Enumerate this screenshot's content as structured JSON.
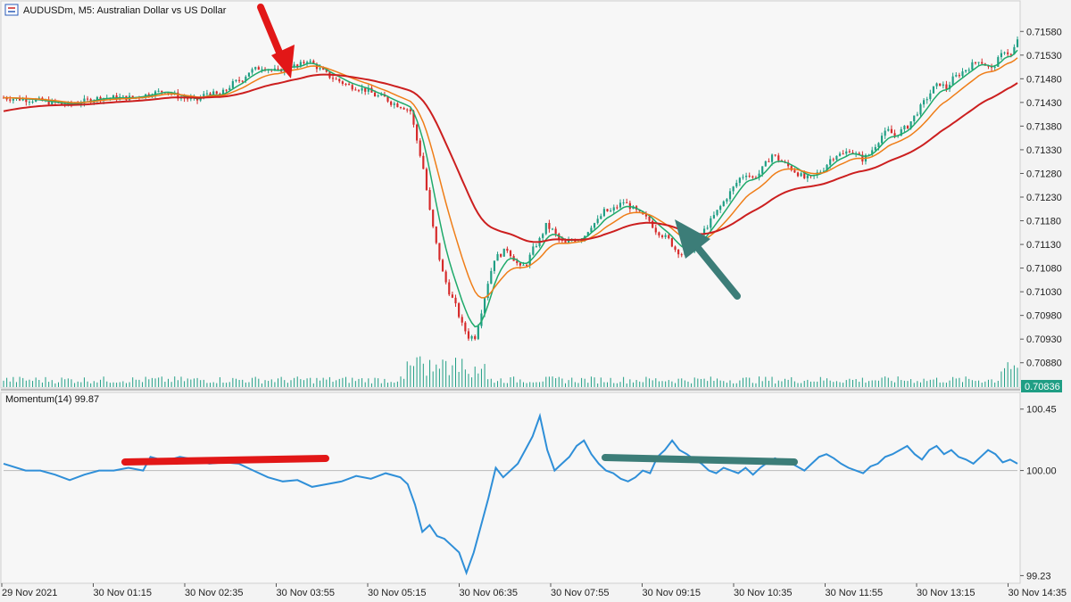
{
  "window_title": "AUDUSDm, M5:  Australian Dollar vs US Dollar",
  "chart_data": [
    {
      "type": "candlestick",
      "symbol": "AUDUSDm",
      "timeframe": "M5",
      "description": "Australian Dollar vs US Dollar",
      "price_axis_labels": [
        "0.71580",
        "0.71530",
        "0.71480",
        "0.71430",
        "0.71380",
        "0.71330",
        "0.71280",
        "0.71230",
        "0.71180",
        "0.71130",
        "0.71080",
        "0.71030",
        "0.70980",
        "0.70930",
        "0.70880"
      ],
      "ylim": [
        0.70855,
        0.71605
      ],
      "current_price": "0.70836",
      "x_axis_labels": [
        "29 Nov 2021",
        "30 Nov 01:15",
        "30 Nov 02:35",
        "30 Nov 03:55",
        "30 Nov 05:15",
        "30 Nov 06:35",
        "30 Nov 07:55",
        "30 Nov 09:15",
        "30 Nov 10:35",
        "30 Nov 11:55",
        "30 Nov 13:15",
        "30 Nov 14:35"
      ],
      "close_path": [
        [
          0,
          0.7144
        ],
        [
          10,
          0.71435
        ],
        [
          20,
          0.71425
        ],
        [
          30,
          0.7144
        ],
        [
          40,
          0.7144
        ],
        [
          50,
          0.71455
        ],
        [
          55,
          0.7144
        ],
        [
          60,
          0.71435
        ],
        [
          63,
          0.7145
        ],
        [
          67,
          0.71445
        ],
        [
          71,
          0.7147
        ],
        [
          74,
          0.7148
        ],
        [
          76,
          0.71495
        ],
        [
          80,
          0.71505
        ],
        [
          85,
          0.71495
        ],
        [
          88,
          0.7151
        ],
        [
          91,
          0.71505
        ],
        [
          94,
          0.7152
        ],
        [
          98,
          0.715
        ],
        [
          101,
          0.71485
        ],
        [
          104,
          0.71475
        ],
        [
          107,
          0.71465
        ],
        [
          110,
          0.7146
        ],
        [
          113,
          0.71455
        ],
        [
          115,
          0.71445
        ],
        [
          118,
          0.7144
        ],
        [
          120,
          0.7143
        ],
        [
          122,
          0.71425
        ],
        [
          124,
          0.7142
        ],
        [
          126,
          0.71412
        ],
        [
          128,
          0.7135
        ],
        [
          130,
          0.7129
        ],
        [
          132,
          0.712
        ],
        [
          134,
          0.7113
        ],
        [
          136,
          0.7107
        ],
        [
          138,
          0.7103
        ],
        [
          140,
          0.71
        ],
        [
          142,
          0.7096
        ],
        [
          144,
          0.70935
        ],
        [
          146,
          0.70935
        ],
        [
          148,
          0.7099
        ],
        [
          150,
          0.7105
        ],
        [
          152,
          0.711
        ],
        [
          154,
          0.7111
        ],
        [
          156,
          0.7112
        ],
        [
          158,
          0.711
        ],
        [
          160,
          0.7108
        ],
        [
          162,
          0.7109
        ],
        [
          164,
          0.7112
        ],
        [
          166,
          0.7114
        ],
        [
          168,
          0.7117
        ],
        [
          170,
          0.7116
        ],
        [
          172,
          0.7114
        ],
        [
          174,
          0.7113
        ],
        [
          176,
          0.7114
        ],
        [
          178,
          0.7114
        ],
        [
          180,
          0.7115
        ],
        [
          182,
          0.7117
        ],
        [
          184,
          0.7118
        ],
        [
          186,
          0.712
        ],
        [
          188,
          0.712
        ],
        [
          190,
          0.7121
        ],
        [
          192,
          0.7122
        ],
        [
          194,
          0.7121
        ],
        [
          196,
          0.712
        ],
        [
          198,
          0.7119
        ],
        [
          200,
          0.7118
        ],
        [
          202,
          0.7116
        ],
        [
          204,
          0.7115
        ],
        [
          206,
          0.7114
        ],
        [
          208,
          0.7112
        ],
        [
          210,
          0.7111
        ],
        [
          212,
          0.7111
        ],
        [
          214,
          0.7113
        ],
        [
          216,
          0.7115
        ],
        [
          218,
          0.7117
        ],
        [
          220,
          0.7119
        ],
        [
          222,
          0.7121
        ],
        [
          224,
          0.7123
        ],
        [
          226,
          0.7125
        ],
        [
          228,
          0.7127
        ],
        [
          230,
          0.7128
        ],
        [
          232,
          0.7127
        ],
        [
          234,
          0.7128
        ],
        [
          236,
          0.713
        ],
        [
          238,
          0.7132
        ],
        [
          240,
          0.7131
        ],
        [
          242,
          0.713
        ],
        [
          244,
          0.7129
        ],
        [
          246,
          0.7128
        ],
        [
          248,
          0.7127
        ],
        [
          250,
          0.7127
        ],
        [
          252,
          0.7128
        ],
        [
          254,
          0.7129
        ],
        [
          256,
          0.7131
        ],
        [
          258,
          0.7132
        ],
        [
          260,
          0.7132
        ],
        [
          262,
          0.7133
        ],
        [
          264,
          0.7132
        ],
        [
          266,
          0.7131
        ],
        [
          268,
          0.7132
        ],
        [
          270,
          0.7134
        ],
        [
          272,
          0.7136
        ],
        [
          274,
          0.7137
        ],
        [
          276,
          0.7136
        ],
        [
          278,
          0.7137
        ],
        [
          280,
          0.7138
        ],
        [
          282,
          0.714
        ],
        [
          284,
          0.7142
        ],
        [
          286,
          0.7144
        ],
        [
          288,
          0.7146
        ],
        [
          290,
          0.7147
        ],
        [
          292,
          0.7146
        ],
        [
          294,
          0.7148
        ],
        [
          296,
          0.7149
        ],
        [
          298,
          0.715
        ],
        [
          300,
          0.7151
        ],
        [
          302,
          0.7152
        ],
        [
          304,
          0.7151
        ],
        [
          306,
          0.715
        ],
        [
          308,
          0.7152
        ],
        [
          310,
          0.7154
        ],
        [
          312,
          0.7153
        ],
        [
          314,
          0.7156
        ]
      ],
      "series": [
        {
          "kind": "ema",
          "color": "#1faa6b"
        },
        {
          "kind": "ema",
          "color": "#ef7d17"
        },
        {
          "kind": "ema",
          "color": "#cc1f1f"
        }
      ],
      "candle_colors": {
        "up": "#1f9e84",
        "down": "#d62a2a"
      }
    },
    {
      "type": "line",
      "indicator_label": "Momentum(14) 99.87",
      "axis_labels": [
        "100.45",
        "100.00",
        "99.23"
      ],
      "ylim": [
        99.2,
        100.52
      ],
      "baseline": 100.0,
      "line_color": "#2f8fd8",
      "values": [
        [
          0,
          100.05
        ],
        [
          6,
          100.0
        ],
        [
          10,
          100.0
        ],
        [
          14,
          99.97
        ],
        [
          18,
          99.93
        ],
        [
          22,
          99.97
        ],
        [
          26,
          100.0
        ],
        [
          30,
          100.0
        ],
        [
          34,
          100.02
        ],
        [
          38,
          100.0
        ],
        [
          40,
          100.1
        ],
        [
          44,
          100.07
        ],
        [
          48,
          100.1
        ],
        [
          52,
          100.08
        ],
        [
          56,
          100.05
        ],
        [
          60,
          100.06
        ],
        [
          64,
          100.05
        ],
        [
          68,
          100.0
        ],
        [
          72,
          99.95
        ],
        [
          76,
          99.92
        ],
        [
          80,
          99.93
        ],
        [
          84,
          99.88
        ],
        [
          88,
          99.9
        ],
        [
          92,
          99.92
        ],
        [
          96,
          99.96
        ],
        [
          100,
          99.94
        ],
        [
          104,
          99.98
        ],
        [
          108,
          99.95
        ],
        [
          110,
          99.9
        ],
        [
          112,
          99.75
        ],
        [
          114,
          99.55
        ],
        [
          116,
          99.6
        ],
        [
          118,
          99.52
        ],
        [
          120,
          99.5
        ],
        [
          122,
          99.45
        ],
        [
          124,
          99.4
        ],
        [
          126,
          99.25
        ],
        [
          128,
          99.4
        ],
        [
          130,
          99.6
        ],
        [
          132,
          99.8
        ],
        [
          134,
          100.02
        ],
        [
          136,
          99.95
        ],
        [
          140,
          100.05
        ],
        [
          142,
          100.15
        ],
        [
          144,
          100.25
        ],
        [
          146,
          100.4
        ],
        [
          148,
          100.15
        ],
        [
          150,
          100.0
        ],
        [
          152,
          100.05
        ],
        [
          154,
          100.1
        ],
        [
          156,
          100.18
        ],
        [
          158,
          100.22
        ],
        [
          160,
          100.12
        ],
        [
          162,
          100.05
        ],
        [
          164,
          100.0
        ],
        [
          166,
          99.98
        ],
        [
          168,
          99.94
        ],
        [
          170,
          99.92
        ],
        [
          172,
          99.95
        ],
        [
          174,
          100.0
        ],
        [
          176,
          99.98
        ],
        [
          178,
          100.1
        ],
        [
          180,
          100.15
        ],
        [
          182,
          100.22
        ],
        [
          184,
          100.15
        ],
        [
          186,
          100.12
        ],
        [
          188,
          100.08
        ],
        [
          190,
          100.05
        ],
        [
          192,
          100.0
        ],
        [
          194,
          99.98
        ],
        [
          196,
          100.02
        ],
        [
          198,
          100.0
        ],
        [
          200,
          99.98
        ],
        [
          202,
          100.02
        ],
        [
          204,
          99.97
        ],
        [
          206,
          100.02
        ],
        [
          208,
          100.06
        ],
        [
          210,
          100.09
        ],
        [
          212,
          100.07
        ],
        [
          214,
          100.06
        ],
        [
          216,
          100.03
        ],
        [
          218,
          100.0
        ],
        [
          220,
          100.05
        ],
        [
          222,
          100.1
        ],
        [
          224,
          100.12
        ],
        [
          226,
          100.09
        ],
        [
          228,
          100.05
        ],
        [
          230,
          100.02
        ],
        [
          232,
          100.0
        ],
        [
          234,
          99.98
        ],
        [
          236,
          100.03
        ],
        [
          238,
          100.05
        ],
        [
          240,
          100.1
        ],
        [
          242,
          100.12
        ],
        [
          244,
          100.15
        ],
        [
          246,
          100.18
        ],
        [
          248,
          100.12
        ],
        [
          250,
          100.08
        ],
        [
          252,
          100.15
        ],
        [
          254,
          100.18
        ],
        [
          256,
          100.12
        ],
        [
          258,
          100.15
        ],
        [
          260,
          100.1
        ],
        [
          262,
          100.08
        ],
        [
          264,
          100.05
        ],
        [
          266,
          100.1
        ],
        [
          268,
          100.15
        ],
        [
          270,
          100.12
        ],
        [
          272,
          100.06
        ],
        [
          274,
          100.08
        ],
        [
          276,
          100.05
        ]
      ]
    }
  ]
}
